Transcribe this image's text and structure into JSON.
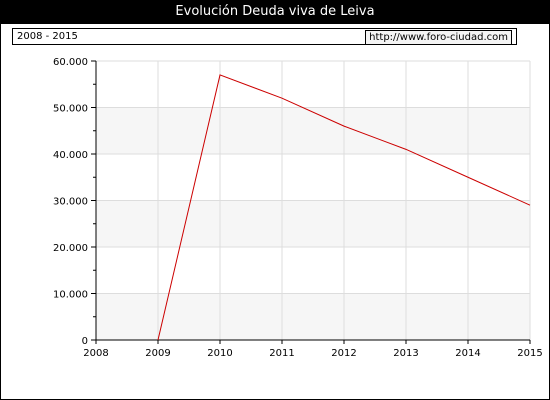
{
  "title": "Evolución Deuda viva de Leiva",
  "info": {
    "period": "2008 - 2015",
    "url": "http://www.foro-ciudad.com"
  },
  "colors": {
    "line": "#cc0000",
    "band": "#f6f6f6",
    "grid": "#dddddd"
  },
  "chart_data": {
    "type": "line",
    "title": "Evolución Deuda viva de Leiva",
    "x_ticks": [
      "2008",
      "2009",
      "2010",
      "2011",
      "2012",
      "2013",
      "2014",
      "2015"
    ],
    "y_ticks": [
      "0",
      "10.000",
      "20.000",
      "30.000",
      "40.000",
      "50.000",
      "60.000"
    ],
    "xlim": [
      2008,
      2015
    ],
    "ylim": [
      0,
      60000
    ],
    "grid": true,
    "series": [
      {
        "x": [
          2009,
          2010,
          2011,
          2012,
          2013,
          2014,
          2015
        ],
        "y": [
          0,
          57000,
          52000,
          46000,
          41000,
          35000,
          29000
        ]
      }
    ]
  }
}
